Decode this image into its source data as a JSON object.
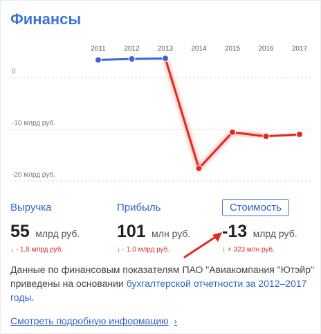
{
  "title": "Финансы",
  "chart_data": {
    "type": "line",
    "x": [
      "2011",
      "2012",
      "2013",
      "2014",
      "2015",
      "2016",
      "2017"
    ],
    "values": [
      1,
      1.2,
      1.3,
      -20,
      -13,
      -13.8,
      -13.4
    ],
    "ylim": [
      -22,
      3
    ],
    "yticks": [
      0,
      -10,
      -20
    ],
    "ytick_labels": [
      "0",
      "-10 млрд руб.",
      "-20 млрд руб."
    ],
    "colors": {
      "positive": "#3c63db",
      "negative": "#e22a1d"
    }
  },
  "metrics": [
    {
      "label": "Выручка",
      "value": "55",
      "unit": "млрд руб.",
      "delta": "↓ - 1,8 млрд руб.",
      "active": false
    },
    {
      "label": "Прибыль",
      "value": "101",
      "unit": "млн руб.",
      "delta": "↓ - 1,0 млрд руб.",
      "active": false
    },
    {
      "label": "Стоимость",
      "value": "-13",
      "unit": "млрд руб.",
      "delta": "↓ + 323 млн руб.",
      "active": true
    }
  ],
  "description": {
    "text": "Данные по финансовым показателям ПАО \"Авиакомпания \"Ютэйр\" приведены на основании ",
    "link": "бухгалтерской отчетности за 2012–2017 годы",
    "end": "."
  },
  "more_link": "Смотреть подробную информацию",
  "more_icon": "chevron-right-icon"
}
